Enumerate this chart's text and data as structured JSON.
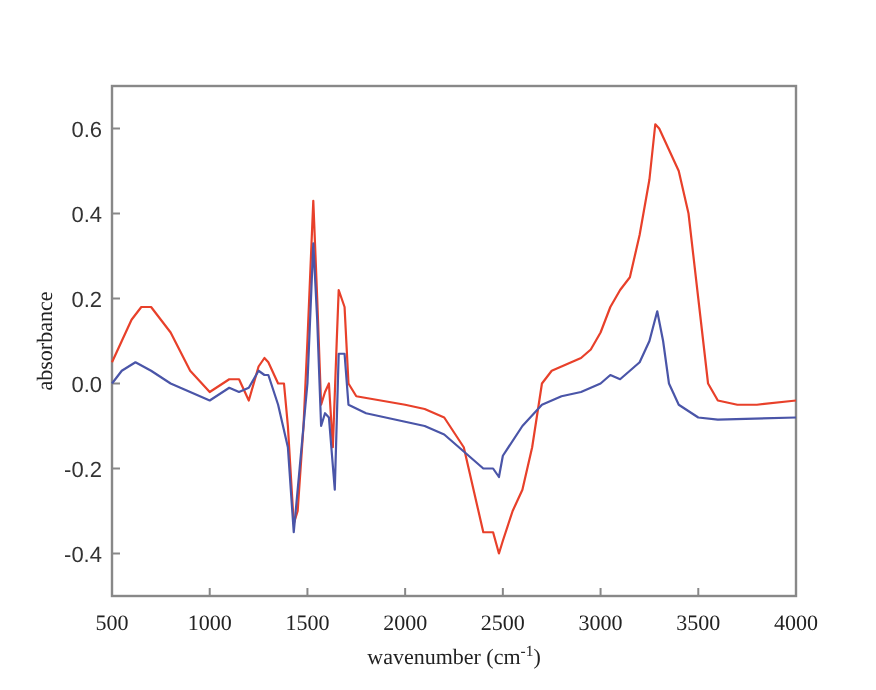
{
  "chart_data": {
    "type": "line",
    "xlabel": "wavenumber (cm$^{-1}$)",
    "ylabel": "absorbance",
    "xlim": [
      500,
      4000
    ],
    "ylim": [
      -0.5,
      0.7
    ],
    "xticks": [
      500,
      1000,
      1500,
      2000,
      2500,
      3000,
      3500,
      4000
    ],
    "yticks": [
      -0.4,
      -0.2,
      {
        "value": 0,
        "label": "0.0"
      },
      0.2,
      0.4,
      0.6
    ],
    "grid": false,
    "series": [
      {
        "color": "#e8402a",
        "x": [
          500,
          550,
          600,
          650,
          700,
          750,
          800,
          900,
          1000,
          1100,
          1150,
          1200,
          1250,
          1280,
          1300,
          1350,
          1380,
          1400,
          1430,
          1450,
          1480,
          1500,
          1530,
          1550,
          1570,
          1590,
          1610,
          1630,
          1650,
          1660,
          1690,
          1710,
          1750,
          2000,
          2100,
          2200,
          2300,
          2400,
          2450,
          2480,
          2500,
          2550,
          2600,
          2650,
          2700,
          2750,
          2800,
          2900,
          2950,
          3000,
          3050,
          3100,
          3150,
          3200,
          3250,
          3280,
          3300,
          3350,
          3400,
          3450,
          3500,
          3550,
          3600,
          3700,
          3800,
          4000
        ],
        "values": [
          0.05,
          0.1,
          0.15,
          0.18,
          0.18,
          0.15,
          0.12,
          0.03,
          -0.02,
          0.01,
          0.01,
          -0.04,
          0.04,
          0.06,
          0.05,
          0,
          0,
          -0.1,
          -0.33,
          -0.3,
          -0.1,
          0.1,
          0.43,
          0.2,
          -0.05,
          -0.02,
          0,
          -0.15,
          0.1,
          0.22,
          0.18,
          0,
          -0.03,
          -0.05,
          -0.06,
          -0.08,
          -0.15,
          -0.35,
          -0.35,
          -0.4,
          -0.37,
          -0.3,
          -0.25,
          -0.15,
          0,
          0.03,
          0.04,
          0.06,
          0.08,
          0.12,
          0.18,
          0.22,
          0.25,
          0.35,
          0.48,
          0.61,
          0.6,
          0.55,
          0.5,
          0.4,
          0.2,
          0,
          -0.04,
          -0.05,
          -0.05,
          -0.04
        ]
      },
      {
        "color": "#4a55a8",
        "x": [
          500,
          550,
          620,
          700,
          800,
          900,
          1000,
          1100,
          1150,
          1200,
          1250,
          1280,
          1300,
          1350,
          1400,
          1430,
          1460,
          1500,
          1530,
          1550,
          1570,
          1590,
          1610,
          1640,
          1660,
          1690,
          1710,
          1800,
          2000,
          2100,
          2200,
          2300,
          2400,
          2450,
          2480,
          2500,
          2600,
          2700,
          2800,
          2900,
          3000,
          3050,
          3100,
          3150,
          3200,
          3250,
          3290,
          3320,
          3350,
          3400,
          3500,
          3600,
          4000
        ],
        "values": [
          0,
          0.03,
          0.05,
          0.03,
          0,
          -0.02,
          -0.04,
          -0.01,
          -0.02,
          -0.01,
          0.03,
          0.02,
          0.02,
          -0.05,
          -0.15,
          -0.35,
          -0.2,
          0,
          0.33,
          0.15,
          -0.1,
          -0.07,
          -0.08,
          -0.25,
          0.07,
          0.07,
          -0.05,
          -0.07,
          -0.09,
          -0.1,
          -0.12,
          -0.16,
          -0.2,
          -0.2,
          -0.22,
          -0.17,
          -0.1,
          -0.05,
          -0.03,
          -0.02,
          0,
          0.02,
          0.01,
          0.03,
          0.05,
          0.1,
          0.17,
          0.1,
          0,
          -0.05,
          -0.08,
          -0.085,
          -0.08
        ]
      }
    ]
  }
}
